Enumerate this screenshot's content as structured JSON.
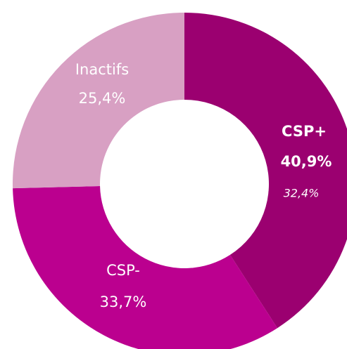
{
  "chart_data": {
    "type": "donut",
    "categories": [
      "CSP+",
      "CSP-",
      "Inactifs"
    ],
    "values": [
      40.9,
      33.7,
      25.4
    ],
    "value_labels": [
      "40,9%",
      "33,7%",
      "25,4%"
    ],
    "colors": [
      "#9b0070",
      "#bb008f",
      "#d8a0c3"
    ],
    "annotation": "32,4%"
  }
}
